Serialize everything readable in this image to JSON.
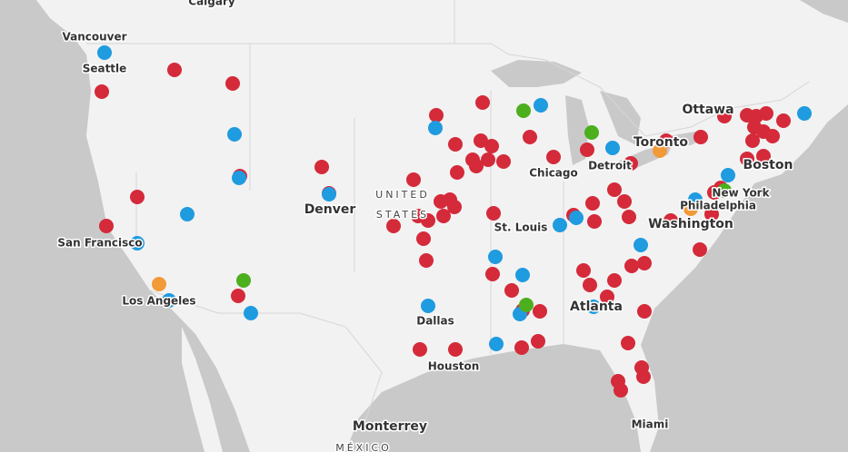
{
  "places": [
    "Calgary",
    "Vancouver",
    "Seattle",
    "Ottawa",
    "Toronto",
    "Chicago",
    "Detroit",
    "Boston",
    "New York",
    "Philadelphia",
    "Washington",
    "Denver",
    "San Francisco",
    "Los Angeles",
    "St. Louis",
    "Dallas",
    "Atlanta",
    "Houston",
    "Monterrey",
    "Miami"
  ],
  "country_labels": [
    "UNITED",
    "STATES",
    "MÉXICO"
  ]
}
